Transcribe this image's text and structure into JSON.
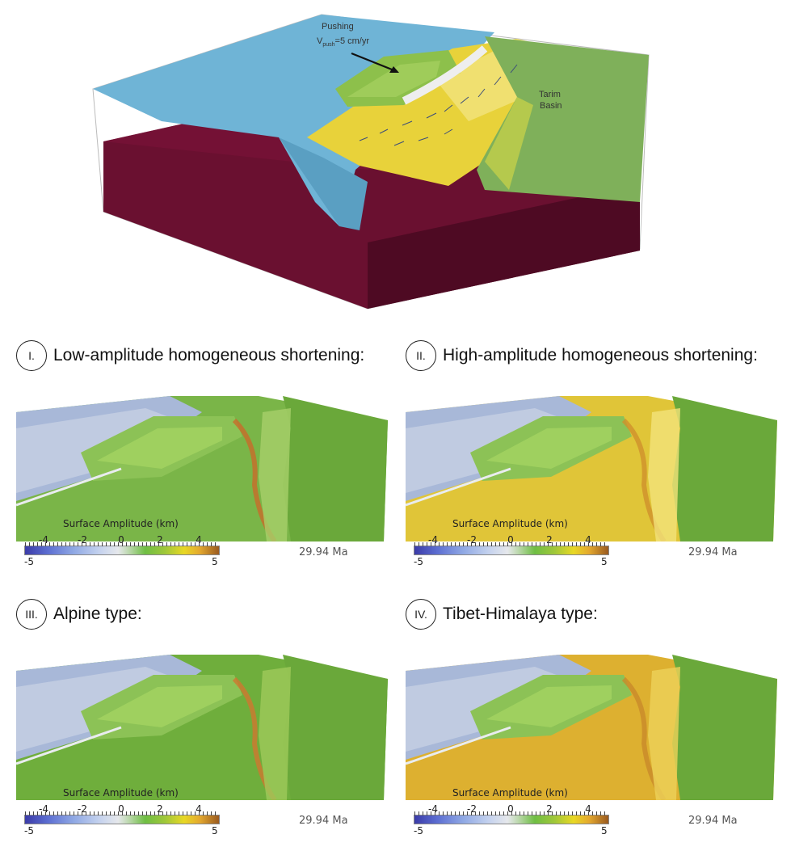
{
  "overview": {
    "pushing_label": "Pushing",
    "velocity_label": "V",
    "velocity_subscript": "push",
    "velocity_value": "=5 cm/yr",
    "basin_label_line1": "Tarim",
    "basin_label_line2": "Basin"
  },
  "panels": [
    {
      "numeral": "I.",
      "title": "Low-amplitude homogeneous shortening:",
      "style": "low"
    },
    {
      "numeral": "II.",
      "title": "High-amplitude homogeneous shortening:",
      "style": "high"
    },
    {
      "numeral": "III.",
      "title": "Alpine type:",
      "style": "alpine"
    },
    {
      "numeral": "IV.",
      "title": "Tibet-Himalaya type:",
      "style": "tibet"
    }
  ],
  "scalebar": {
    "title": "Surface Amplitude (km)",
    "ticks": [
      "-4",
      "-2",
      "0",
      "2",
      "4"
    ],
    "min": "-5",
    "max": "5"
  },
  "timestamp": "29.94 Ma",
  "colors": {
    "ocean": "#8aa9d6",
    "lowland": "#6fae3c",
    "highland": "#e4c63a",
    "plateau": "#d69a2c",
    "mantle": "#6a1030",
    "water_top": "#6eb4d8"
  }
}
